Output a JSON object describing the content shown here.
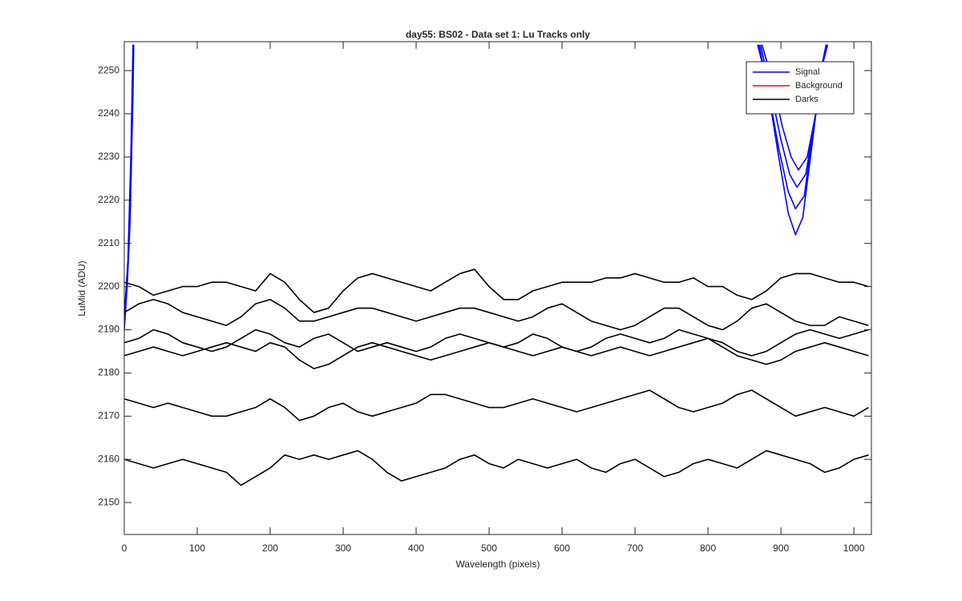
{
  "chart_data": {
    "type": "line",
    "title": "day55: BS02 - Data set 1: Lu Tracks only",
    "xlabel": "Wavelength (pixels)",
    "ylabel": "LuMid (ADU)",
    "xlim": [
      0,
      1024
    ],
    "ylim": [
      2142.6,
      2256.7
    ],
    "xticks": [
      0,
      100,
      200,
      300,
      400,
      500,
      600,
      700,
      800,
      900,
      1000
    ],
    "yticks": [
      2150,
      2160,
      2170,
      2180,
      2190,
      2200,
      2210,
      2220,
      2230,
      2240,
      2250
    ],
    "legend": "northeast",
    "x": [
      0,
      20,
      40,
      60,
      80,
      100,
      120,
      140,
      160,
      180,
      200,
      220,
      240,
      260,
      280,
      300,
      320,
      340,
      360,
      380,
      400,
      420,
      440,
      460,
      480,
      500,
      520,
      540,
      560,
      580,
      600,
      620,
      640,
      660,
      680,
      700,
      720,
      740,
      760,
      780,
      800,
      820,
      840,
      860,
      880,
      900,
      920,
      940,
      960,
      980,
      1000,
      1020
    ],
    "series": [
      {
        "name": "Signal",
        "color": "#0000ff",
        "x": [
          0,
          4,
          8,
          12,
          13
        ],
        "values": [
          2190,
          2200,
          2215,
          2245,
          2256
        ]
      },
      {
        "color": "#0000ff",
        "x": [
          0,
          5,
          9,
          12
        ],
        "values": [
          2193,
          2206,
          2230,
          2256
        ]
      },
      {
        "color": "#0000ff",
        "x": [
          868,
          880,
          895,
          910,
          920,
          930,
          945,
          955,
          962
        ],
        "values": [
          2256,
          2248,
          2232,
          2217,
          2212,
          2216,
          2236,
          2250,
          2256
        ]
      },
      {
        "color": "#0000ff",
        "x": [
          870,
          882,
          897,
          910,
          920,
          932,
          946,
          956,
          962
        ],
        "values": [
          2256,
          2246,
          2232,
          2222,
          2218,
          2221,
          2238,
          2251,
          2256
        ]
      },
      {
        "color": "#0000ff",
        "x": [
          872,
          884,
          900,
          912,
          922,
          934,
          948,
          957,
          963
        ],
        "values": [
          2256,
          2247,
          2234,
          2226,
          2223,
          2226,
          2240,
          2252,
          2256
        ]
      },
      {
        "color": "#0000ff",
        "x": [
          874,
          886,
          902,
          914,
          924,
          936,
          950,
          958,
          964
        ],
        "values": [
          2256,
          2249,
          2237,
          2230,
          2227,
          2230,
          2242,
          2252,
          2256
        ]
      },
      {
        "name": "Background",
        "color": "#ff0000",
        "x": [],
        "values": []
      },
      {
        "name": "Darks",
        "color": "#000000",
        "values": [
          2201,
          2200,
          2198,
          2199,
          2200,
          2200,
          2201,
          2201,
          2200,
          2199,
          2203,
          2201,
          2197,
          2194,
          2195,
          2199,
          2202,
          2203,
          2202,
          2201,
          2200,
          2199,
          2201,
          2203,
          2204,
          2200,
          2197,
          2197,
          2199,
          2200,
          2201,
          2201,
          2201,
          2202,
          2202,
          2203,
          2202,
          2201,
          2201,
          2202,
          2200,
          2200,
          2198,
          2197,
          2199,
          2202,
          2203,
          2203,
          2202,
          2201,
          2201,
          2200
        ]
      },
      {
        "color": "#000000",
        "values": [
          2194,
          2196,
          2197,
          2196,
          2194,
          2193,
          2192,
          2191,
          2193,
          2196,
          2197,
          2195,
          2192,
          2192,
          2193,
          2194,
          2195,
          2195,
          2194,
          2193,
          2192,
          2193,
          2194,
          2195,
          2195,
          2194,
          2193,
          2192,
          2193,
          2195,
          2196,
          2194,
          2192,
          2191,
          2190,
          2191,
          2193,
          2195,
          2195,
          2193,
          2191,
          2190,
          2192,
          2195,
          2196,
          2194,
          2192,
          2191,
          2191,
          2193,
          2192,
          2191
        ]
      },
      {
        "color": "#000000",
        "values": [
          2187,
          2188,
          2190,
          2189,
          2187,
          2186,
          2185,
          2186,
          2188,
          2190,
          2189,
          2187,
          2186,
          2188,
          2189,
          2187,
          2185,
          2186,
          2187,
          2186,
          2185,
          2186,
          2188,
          2189,
          2188,
          2187,
          2186,
          2187,
          2189,
          2188,
          2186,
          2185,
          2186,
          2188,
          2189,
          2188,
          2187,
          2188,
          2190,
          2189,
          2188,
          2187,
          2185,
          2184,
          2185,
          2187,
          2189,
          2190,
          2189,
          2188,
          2189,
          2190
        ]
      },
      {
        "color": "#000000",
        "values": [
          2184,
          2185,
          2186,
          2185,
          2184,
          2185,
          2186,
          2187,
          2186,
          2185,
          2187,
          2186,
          2183,
          2181,
          2182,
          2184,
          2186,
          2187,
          2186,
          2185,
          2184,
          2183,
          2184,
          2185,
          2186,
          2187,
          2186,
          2185,
          2184,
          2185,
          2186,
          2185,
          2184,
          2185,
          2186,
          2185,
          2184,
          2185,
          2186,
          2187,
          2188,
          2186,
          2184,
          2183,
          2182,
          2183,
          2185,
          2186,
          2187,
          2186,
          2185,
          2184
        ]
      },
      {
        "color": "#000000",
        "values": [
          2174,
          2173,
          2172,
          2173,
          2172,
          2171,
          2170,
          2170,
          2171,
          2172,
          2174,
          2172,
          2169,
          2170,
          2172,
          2173,
          2171,
          2170,
          2171,
          2172,
          2173,
          2175,
          2175,
          2174,
          2173,
          2172,
          2172,
          2173,
          2174,
          2173,
          2172,
          2171,
          2172,
          2173,
          2174,
          2175,
          2176,
          2174,
          2172,
          2171,
          2172,
          2173,
          2175,
          2176,
          2174,
          2172,
          2170,
          2171,
          2172,
          2171,
          2170,
          2172
        ]
      },
      {
        "color": "#000000",
        "values": [
          2160,
          2159,
          2158,
          2159,
          2160,
          2159,
          2158,
          2157,
          2154,
          2156,
          2158,
          2161,
          2160,
          2161,
          2160,
          2161,
          2162,
          2160,
          2157,
          2155,
          2156,
          2157,
          2158,
          2160,
          2161,
          2159,
          2158,
          2160,
          2159,
          2158,
          2159,
          2160,
          2158,
          2157,
          2159,
          2160,
          2158,
          2156,
          2157,
          2159,
          2160,
          2159,
          2158,
          2160,
          2162,
          2161,
          2160,
          2159,
          2157,
          2158,
          2160,
          2161
        ]
      }
    ]
  }
}
